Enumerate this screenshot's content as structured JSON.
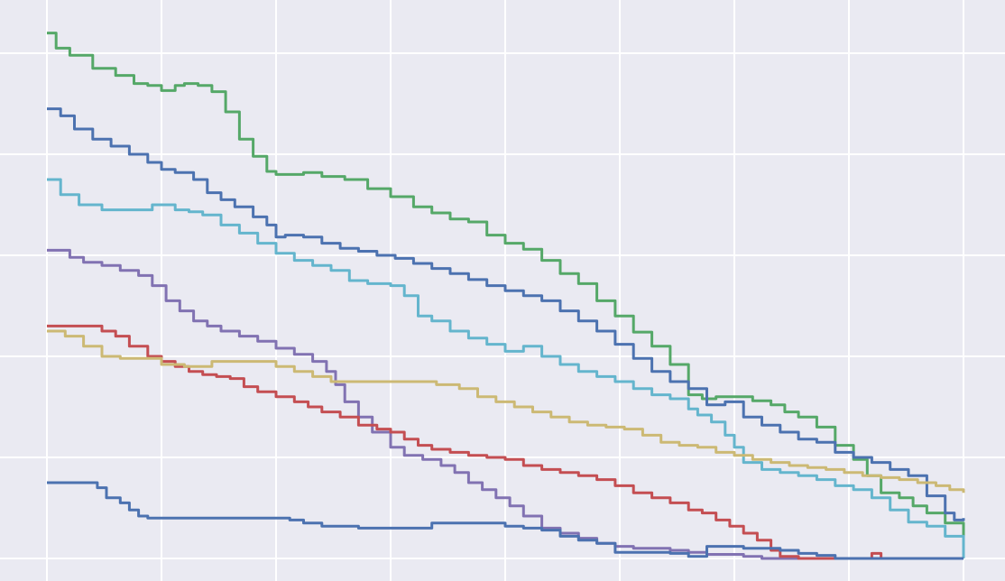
{
  "chart_data": {
    "type": "line",
    "title": "",
    "xlabel": "",
    "ylabel": "",
    "xlim": [
      0,
      1000
    ],
    "ylim": [
      -0.15,
      5.35
    ],
    "x_grid": [
      0,
      125,
      250,
      375,
      500,
      625,
      750,
      875,
      1000
    ],
    "y_grid": [
      0,
      1,
      2,
      3,
      4,
      5
    ],
    "grid": true,
    "legend": "none",
    "colors": {
      "background": "#eaeaf2",
      "grid": "#ffffff",
      "green": "#55a868",
      "blue": "#4c72b0",
      "cyan": "#64b5cd",
      "purple": "#8172b2",
      "red": "#c44e52",
      "yellow": "#ccb974"
    },
    "series": [
      {
        "color": "green",
        "x": [
          0,
          10,
          25,
          50,
          75,
          95,
          110,
          125,
          140,
          150,
          165,
          180,
          195,
          210,
          225,
          240,
          250,
          260,
          280,
          300,
          325,
          350,
          375,
          400,
          420,
          440,
          460,
          480,
          500,
          520,
          540,
          560,
          580,
          600,
          620,
          640,
          660,
          680,
          700,
          715,
          730,
          750,
          770,
          790,
          805,
          820,
          840,
          860,
          880,
          895,
          910,
          930,
          945,
          960,
          980,
          1000
        ],
        "y": [
          5.2,
          5.05,
          4.98,
          4.85,
          4.78,
          4.7,
          4.68,
          4.63,
          4.68,
          4.7,
          4.68,
          4.62,
          4.42,
          4.15,
          3.98,
          3.83,
          3.8,
          3.8,
          3.82,
          3.78,
          3.75,
          3.66,
          3.58,
          3.48,
          3.42,
          3.36,
          3.33,
          3.2,
          3.12,
          3.06,
          2.95,
          2.82,
          2.72,
          2.55,
          2.4,
          2.24,
          2.1,
          1.92,
          1.62,
          1.58,
          1.6,
          1.6,
          1.56,
          1.52,
          1.45,
          1.4,
          1.3,
          1.12,
          0.98,
          0.82,
          0.65,
          0.6,
          0.52,
          0.45,
          0.35,
          0.2
        ]
      },
      {
        "color": "blue",
        "x": [
          0,
          15,
          30,
          50,
          70,
          90,
          110,
          125,
          140,
          160,
          175,
          190,
          205,
          225,
          240,
          250,
          260,
          280,
          300,
          320,
          340,
          360,
          380,
          400,
          420,
          440,
          460,
          480,
          500,
          520,
          540,
          560,
          580,
          600,
          620,
          640,
          660,
          680,
          700,
          720,
          740,
          760,
          780,
          800,
          820,
          840,
          860,
          880,
          900,
          920,
          940,
          960,
          980,
          990,
          1000
        ],
        "y": [
          4.45,
          4.38,
          4.25,
          4.15,
          4.08,
          4.0,
          3.92,
          3.85,
          3.82,
          3.75,
          3.62,
          3.55,
          3.48,
          3.38,
          3.3,
          3.18,
          3.2,
          3.18,
          3.12,
          3.07,
          3.04,
          3.0,
          2.97,
          2.92,
          2.87,
          2.82,
          2.76,
          2.7,
          2.65,
          2.6,
          2.55,
          2.45,
          2.35,
          2.25,
          2.12,
          1.98,
          1.85,
          1.75,
          1.68,
          1.52,
          1.55,
          1.4,
          1.32,
          1.25,
          1.18,
          1.15,
          1.05,
          1.0,
          0.95,
          0.88,
          0.82,
          0.62,
          0.45,
          0.38,
          0.4
        ]
      },
      {
        "color": "cyan",
        "x": [
          0,
          15,
          35,
          60,
          80,
          100,
          115,
          125,
          140,
          155,
          170,
          190,
          210,
          230,
          250,
          270,
          290,
          310,
          330,
          350,
          375,
          390,
          405,
          420,
          440,
          460,
          480,
          500,
          520,
          540,
          560,
          580,
          600,
          620,
          640,
          660,
          680,
          700,
          710,
          725,
          740,
          750,
          760,
          780,
          800,
          820,
          840,
          860,
          880,
          900,
          920,
          940,
          960,
          980,
          1000
        ],
        "y": [
          3.75,
          3.6,
          3.5,
          3.45,
          3.45,
          3.45,
          3.5,
          3.5,
          3.45,
          3.43,
          3.4,
          3.3,
          3.22,
          3.12,
          3.02,
          2.95,
          2.9,
          2.85,
          2.75,
          2.72,
          2.7,
          2.6,
          2.4,
          2.35,
          2.25,
          2.18,
          2.12,
          2.05,
          2.1,
          2.0,
          1.92,
          1.85,
          1.8,
          1.75,
          1.68,
          1.62,
          1.58,
          1.48,
          1.42,
          1.35,
          1.22,
          1.1,
          0.95,
          0.88,
          0.85,
          0.82,
          0.78,
          0.72,
          0.68,
          0.6,
          0.48,
          0.36,
          0.32,
          0.22,
          0.0
        ]
      },
      {
        "color": "purple",
        "x": [
          0,
          15,
          25,
          40,
          60,
          80,
          100,
          115,
          130,
          145,
          160,
          175,
          190,
          210,
          230,
          250,
          270,
          290,
          305,
          315,
          325,
          340,
          355,
          375,
          390,
          410,
          430,
          445,
          460,
          475,
          490,
          505,
          520,
          540,
          560,
          580,
          600,
          620,
          640,
          660,
          680,
          700,
          720,
          740,
          760,
          780,
          800,
          820,
          840,
          860,
          880,
          900,
          920,
          940,
          960,
          980,
          1000
        ],
        "y": [
          3.05,
          3.05,
          2.98,
          2.93,
          2.9,
          2.85,
          2.8,
          2.7,
          2.55,
          2.45,
          2.35,
          2.3,
          2.25,
          2.2,
          2.15,
          2.08,
          2.02,
          1.95,
          1.85,
          1.72,
          1.55,
          1.4,
          1.25,
          1.1,
          1.02,
          0.98,
          0.92,
          0.85,
          0.75,
          0.68,
          0.6,
          0.52,
          0.42,
          0.3,
          0.25,
          0.2,
          0.15,
          0.12,
          0.1,
          0.1,
          0.08,
          0.06,
          0.04,
          0.04,
          0.02,
          0.0,
          0.0,
          0.0,
          0.0,
          0.0,
          0.0,
          0.0,
          0.0,
          0.0,
          0.0,
          0.0,
          0.0
        ]
      },
      {
        "color": "red",
        "x": [
          0,
          20,
          45,
          60,
          75,
          90,
          110,
          125,
          140,
          155,
          170,
          185,
          200,
          215,
          230,
          250,
          270,
          285,
          300,
          320,
          340,
          360,
          375,
          390,
          405,
          420,
          440,
          460,
          480,
          500,
          520,
          540,
          560,
          580,
          600,
          620,
          640,
          660,
          680,
          700,
          715,
          730,
          745,
          760,
          775,
          790,
          800,
          820,
          860,
          890,
          900,
          910,
          930,
          960,
          1000
        ],
        "y": [
          2.3,
          2.3,
          2.3,
          2.25,
          2.2,
          2.1,
          2.0,
          1.95,
          1.9,
          1.85,
          1.82,
          1.8,
          1.78,
          1.7,
          1.65,
          1.6,
          1.55,
          1.5,
          1.45,
          1.4,
          1.32,
          1.28,
          1.25,
          1.18,
          1.12,
          1.08,
          1.05,
          1.02,
          1.0,
          0.98,
          0.92,
          0.88,
          0.85,
          0.82,
          0.78,
          0.72,
          0.65,
          0.6,
          0.55,
          0.48,
          0.45,
          0.38,
          0.32,
          0.25,
          0.18,
          0.08,
          0.02,
          0.0,
          0.0,
          0.0,
          0.05,
          0.0,
          0.0,
          0.0,
          0.0
        ]
      },
      {
        "color": "yellow",
        "x": [
          0,
          20,
          40,
          60,
          80,
          100,
          125,
          150,
          180,
          200,
          225,
          250,
          270,
          290,
          310,
          330,
          350,
          375,
          400,
          425,
          450,
          470,
          490,
          510,
          530,
          550,
          570,
          590,
          610,
          630,
          650,
          670,
          690,
          710,
          730,
          750,
          770,
          790,
          810,
          830,
          850,
          870,
          890,
          910,
          930,
          950,
          970,
          985,
          1000
        ],
        "y": [
          2.25,
          2.2,
          2.1,
          2.0,
          1.98,
          1.98,
          1.92,
          1.9,
          1.95,
          1.95,
          1.95,
          1.9,
          1.85,
          1.8,
          1.75,
          1.75,
          1.75,
          1.75,
          1.75,
          1.72,
          1.68,
          1.6,
          1.55,
          1.5,
          1.45,
          1.4,
          1.35,
          1.32,
          1.3,
          1.28,
          1.22,
          1.15,
          1.12,
          1.1,
          1.05,
          1.02,
          0.98,
          0.95,
          0.92,
          0.9,
          0.88,
          0.85,
          0.82,
          0.8,
          0.78,
          0.75,
          0.72,
          0.68,
          0.65
        ]
      },
      {
        "color": "blue",
        "x": [
          0,
          20,
          45,
          55,
          65,
          80,
          90,
          100,
          110,
          125,
          150,
          200,
          250,
          265,
          280,
          300,
          320,
          340,
          375,
          400,
          420,
          440,
          460,
          480,
          500,
          520,
          540,
          560,
          580,
          600,
          620,
          640,
          660,
          680,
          700,
          720,
          740,
          760,
          780,
          800,
          820,
          840,
          860,
          880,
          900,
          920,
          940,
          960,
          980,
          1000
        ],
        "y": [
          0.75,
          0.75,
          0.75,
          0.7,
          0.6,
          0.55,
          0.48,
          0.42,
          0.4,
          0.4,
          0.4,
          0.4,
          0.4,
          0.38,
          0.35,
          0.32,
          0.32,
          0.3,
          0.3,
          0.3,
          0.35,
          0.35,
          0.35,
          0.35,
          0.32,
          0.3,
          0.28,
          0.22,
          0.18,
          0.15,
          0.06,
          0.06,
          0.06,
          0.05,
          0.02,
          0.12,
          0.12,
          0.1,
          0.1,
          0.08,
          0.05,
          0.03,
          0.0,
          0.0,
          0.0,
          0.0,
          0.0,
          0.0,
          0.0,
          0.0
        ]
      }
    ]
  }
}
